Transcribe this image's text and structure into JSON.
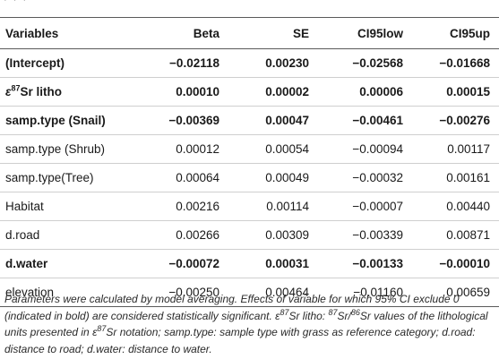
{
  "table": {
    "headers": [
      "Variables",
      "Beta",
      "SE",
      "CI95low",
      "CI95up"
    ],
    "rows": [
      {
        "variable": "(Intercept)",
        "beta": "−0.02118",
        "se": "0.00230",
        "ci_low": "−0.02568",
        "ci_up": "−0.01668",
        "bold": true
      },
      {
        "variable_prefix": "ε",
        "variable_sup": "87",
        "variable_suffix": "Sr litho",
        "beta": "0.00010",
        "se": "0.00002",
        "ci_low": "0.00006",
        "ci_up": "0.00015",
        "bold": true
      },
      {
        "variable": "samp.type (Snail)",
        "beta": "−0.00369",
        "se": "0.00047",
        "ci_low": "−0.00461",
        "ci_up": "−0.00276",
        "bold": true
      },
      {
        "variable": "samp.type (Shrub)",
        "beta": "0.00012",
        "se": "0.00054",
        "ci_low": "−0.00094",
        "ci_up": "0.00117",
        "bold": false
      },
      {
        "variable": "samp.type(Tree)",
        "beta": "0.00064",
        "se": "0.00049",
        "ci_low": "−0.00032",
        "ci_up": "0.00161",
        "bold": false
      },
      {
        "variable": "Habitat",
        "beta": "0.00216",
        "se": "0.00114",
        "ci_low": "−0.00007",
        "ci_up": "0.00440",
        "bold": false
      },
      {
        "variable": "d.road",
        "beta": "0.00266",
        "se": "0.00309",
        "ci_low": "−0.00339",
        "ci_up": "0.00871",
        "bold": false
      },
      {
        "variable": "d.water",
        "beta": "−0.00072",
        "se": "0.00031",
        "ci_low": "−0.00133",
        "ci_up": "−0.00010",
        "bold": true
      },
      {
        "variable": "elevation",
        "beta": "−0.00250",
        "se": "0.00464",
        "ci_low": "−0.01160",
        "ci_up": "0.00659",
        "bold": false
      }
    ]
  },
  "footnote": {
    "p1": "Parameters were calculated by model averaging. Effects of variable for which 95% CI exclude 0 (indicated in bold) are considered statistically significant. ",
    "eps1": "ε",
    "sup87a": "87",
    "p2": "Sr litho: ",
    "sup87b": "87",
    "p3": "Sr/",
    "sup86": "86",
    "p4": "Sr values of the lithological units presented in ",
    "eps2": "ε",
    "sup87c": "87",
    "p5": "Sr notation; samp.type: sample type with grass as reference category; d.road: distance to road; d.water: distance to water."
  }
}
